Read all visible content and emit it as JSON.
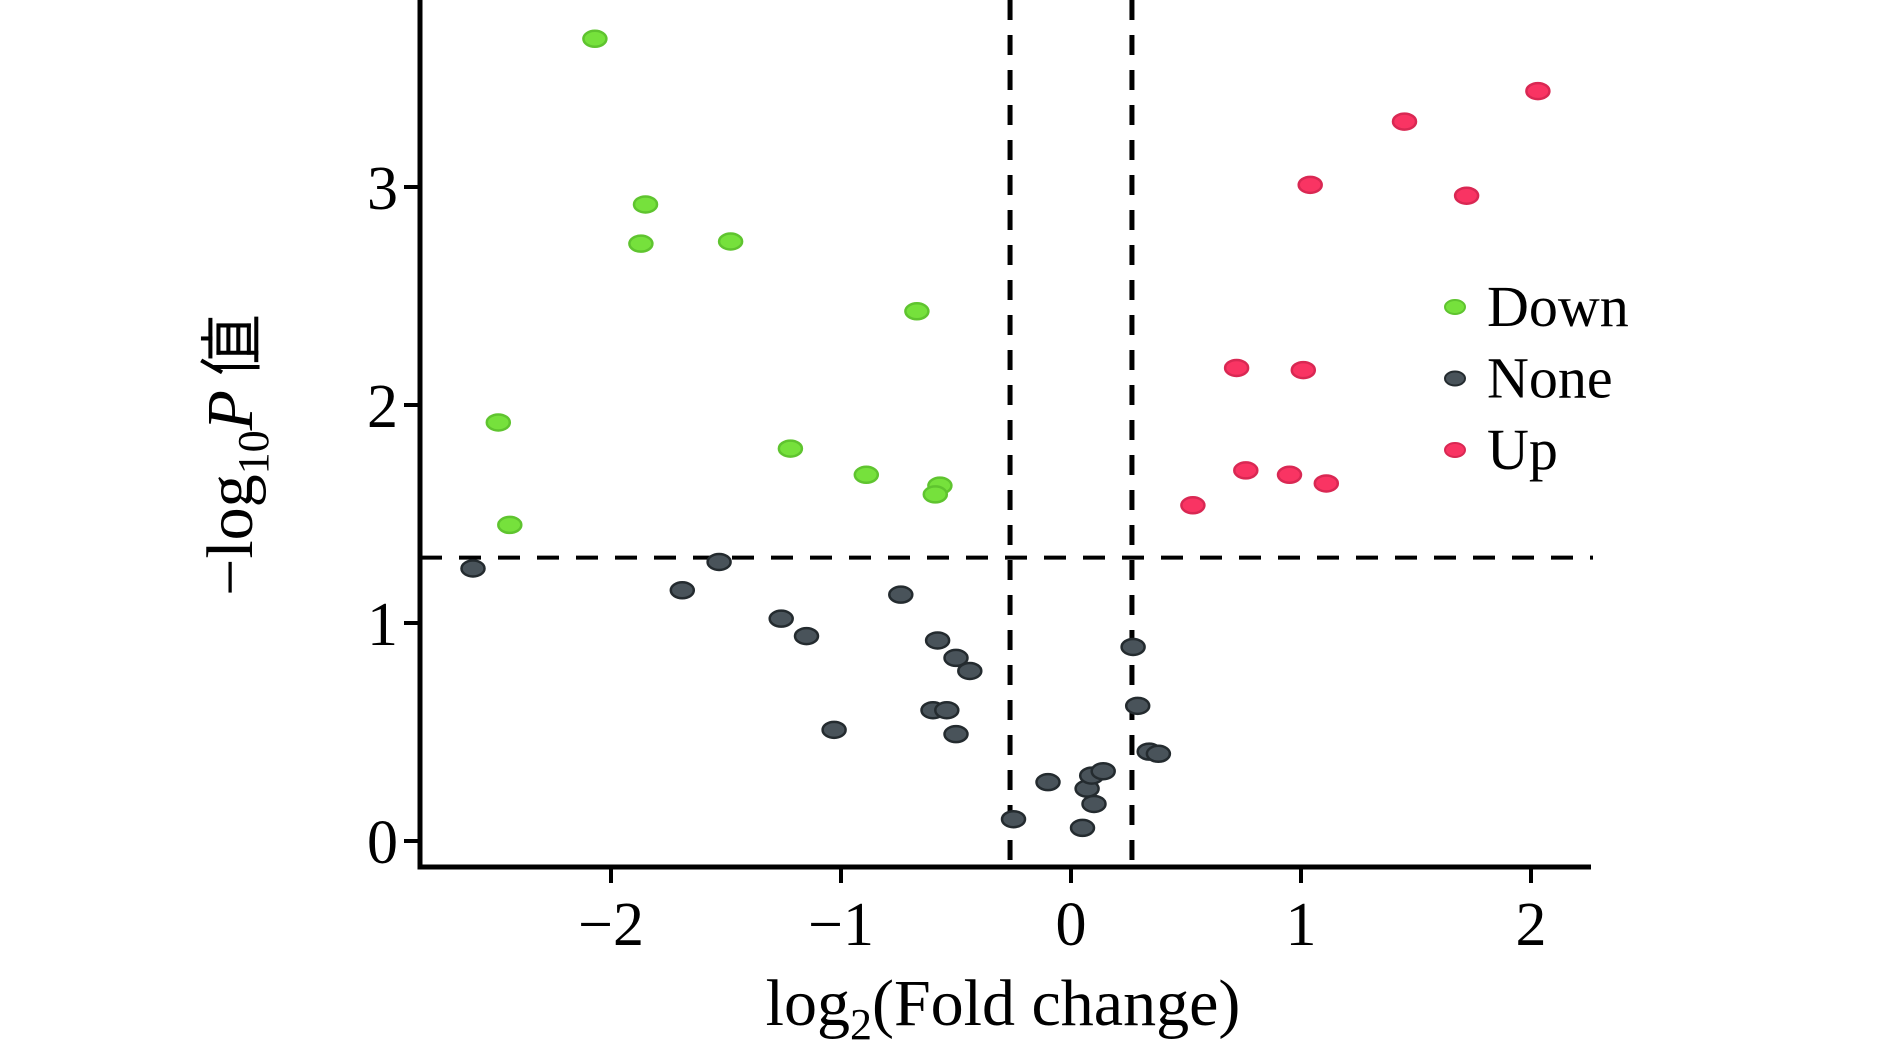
{
  "chart_data": {
    "type": "scatter",
    "title": "",
    "xlabel_parts": {
      "prefix": "log",
      "sub": "2",
      "suffix": "(Fold change)"
    },
    "ylabel_parts": {
      "prefix": "−log",
      "sub": "10",
      "italic": "P",
      "cjk": "值"
    },
    "xlim": [
      -2.83,
      2.26
    ],
    "ylim": [
      -0.12,
      3.86
    ],
    "x_ticks": [
      -2,
      -1,
      0,
      1,
      2
    ],
    "x_tick_labels": [
      "−2",
      "−1",
      "0",
      "1",
      "2"
    ],
    "y_ticks": [
      0,
      1,
      2,
      3
    ],
    "y_tick_labels": [
      "0",
      "1",
      "2",
      "3"
    ],
    "grid": false,
    "legend_position": "right-upper",
    "thresholds": {
      "horizontal_y": 1.3,
      "vertical_x": [
        -0.265,
        0.265
      ],
      "line_style": "dashed"
    },
    "series": [
      {
        "name": "Down",
        "color": "#76E13C",
        "stroke": "#5FC42F",
        "points": [
          [
            -2.07,
            3.68
          ],
          [
            -1.85,
            2.92
          ],
          [
            -1.87,
            2.74
          ],
          [
            -1.48,
            2.75
          ],
          [
            -2.49,
            1.92
          ],
          [
            -2.44,
            1.45
          ],
          [
            -0.67,
            2.43
          ],
          [
            -1.22,
            1.8
          ],
          [
            -0.89,
            1.68
          ],
          [
            -0.57,
            1.63
          ],
          [
            -0.59,
            1.59
          ]
        ]
      },
      {
        "name": "None",
        "color": "#49535A",
        "stroke": "#242B2F",
        "points": [
          [
            -2.6,
            1.25
          ],
          [
            -1.53,
            1.28
          ],
          [
            -1.69,
            1.15
          ],
          [
            -1.26,
            1.02
          ],
          [
            -1.15,
            0.94
          ],
          [
            -1.03,
            0.51
          ],
          [
            -0.74,
            1.13
          ],
          [
            -0.58,
            0.92
          ],
          [
            -0.5,
            0.84
          ],
          [
            -0.44,
            0.78
          ],
          [
            -0.6,
            0.6
          ],
          [
            -0.54,
            0.6
          ],
          [
            -0.5,
            0.49
          ],
          [
            -0.25,
            0.1
          ],
          [
            -0.1,
            0.27
          ],
          [
            0.07,
            0.24
          ],
          [
            0.09,
            0.3
          ],
          [
            0.14,
            0.32
          ],
          [
            0.1,
            0.17
          ],
          [
            0.05,
            0.06
          ],
          [
            0.27,
            0.89
          ],
          [
            0.29,
            0.62
          ],
          [
            0.34,
            0.41
          ],
          [
            0.38,
            0.4
          ]
        ]
      },
      {
        "name": "Up",
        "color": "#F93463",
        "stroke": "#D92853",
        "points": [
          [
            2.03,
            3.44
          ],
          [
            1.45,
            3.3
          ],
          [
            1.04,
            3.01
          ],
          [
            1.72,
            2.96
          ],
          [
            0.72,
            2.17
          ],
          [
            1.01,
            2.16
          ],
          [
            0.76,
            1.7
          ],
          [
            0.95,
            1.68
          ],
          [
            1.11,
            1.64
          ],
          [
            0.53,
            1.54
          ]
        ]
      }
    ]
  },
  "legend": {
    "items": [
      {
        "label": "Down",
        "color": "#76E13C",
        "stroke": "#5FC42F"
      },
      {
        "label": "None",
        "color": "#49535A",
        "stroke": "#242B2F"
      },
      {
        "label": "Up",
        "color": "#F93463",
        "stroke": "#D92853"
      }
    ]
  },
  "colors": {
    "background": "#ffffff",
    "axis": "#000000",
    "down": "#76E13C",
    "none": "#49535A",
    "up": "#F93463"
  }
}
